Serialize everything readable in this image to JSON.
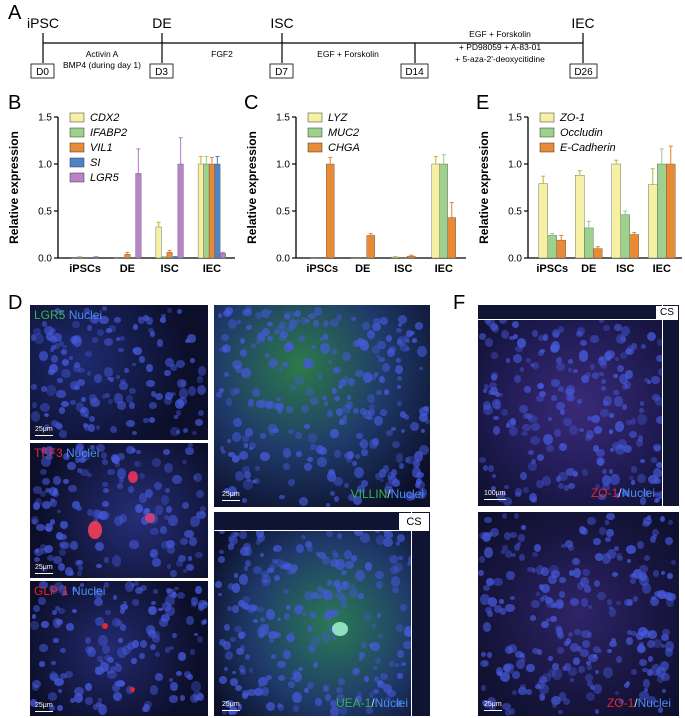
{
  "panel_letters": {
    "a": "A",
    "b": "B",
    "c": "C",
    "d": "D",
    "e": "E",
    "f": "F"
  },
  "timeline": {
    "stages": [
      "iPSC",
      "DE",
      "ISC",
      "IEC"
    ],
    "days": [
      "D0",
      "D3",
      "D7",
      "D14",
      "D26"
    ],
    "conditions": [
      "Activin A",
      "BMP4 (during day 1)",
      "FGF2",
      "EGF + Forskolin",
      "EGF + Forskolin",
      "+ PD98059 + A-83-01",
      "+ 5-aza-2'-deoxycitidine"
    ]
  },
  "chart_data": [
    {
      "type": "bar",
      "ylabel": "Relative expression",
      "ylim": [
        0,
        1.5
      ],
      "yticks": [
        "0.0",
        "0.5",
        "1.0",
        "1.5"
      ],
      "categories": [
        "iPSCs",
        "DE",
        "ISC",
        "IEC"
      ],
      "series": [
        {
          "name": "CDX2",
          "color": "#f6f0a4",
          "values": [
            0.0,
            0.0,
            0.33,
            1.0
          ],
          "errors": [
            0,
            0,
            0.05,
            0.08
          ]
        },
        {
          "name": "IFABP2",
          "color": "#9ed18e",
          "values": [
            0.01,
            0.0,
            0.01,
            1.0
          ],
          "errors": [
            0.005,
            0,
            0.005,
            0.08
          ]
        },
        {
          "name": "VIL1",
          "color": "#e98a36",
          "values": [
            0.0,
            0.04,
            0.06,
            1.0
          ],
          "errors": [
            0,
            0.02,
            0.02,
            0.07
          ]
        },
        {
          "name": "SI",
          "color": "#4f84c7",
          "values": [
            0.0,
            0.0,
            0.01,
            1.0
          ],
          "errors": [
            0,
            0,
            0.005,
            0.08
          ]
        },
        {
          "name": "LGR5",
          "color": "#b883c8",
          "values": [
            0.01,
            0.9,
            1.0,
            0.05
          ],
          "errors": [
            0.005,
            0.26,
            0.28,
            0.01
          ]
        }
      ]
    },
    {
      "type": "bar",
      "ylabel": "Relative expression",
      "ylim": [
        0,
        1.5
      ],
      "yticks": [
        "0.0",
        "0.5",
        "1.0",
        "1.5"
      ],
      "categories": [
        "iPSCs",
        "DE",
        "ISC",
        "IEC"
      ],
      "series": [
        {
          "name": "LYZ",
          "color": "#f6f0a4",
          "values": [
            0.0,
            0.0,
            0.01,
            1.0
          ],
          "errors": [
            0,
            0,
            0.005,
            0.08
          ]
        },
        {
          "name": "MUC2",
          "color": "#9ed18e",
          "values": [
            0.0,
            0.0,
            0.0,
            1.0
          ],
          "errors": [
            0,
            0,
            0,
            0.1
          ]
        },
        {
          "name": "CHGA",
          "color": "#e98a36",
          "values": [
            1.0,
            0.24,
            0.02,
            0.43
          ],
          "errors": [
            0.07,
            0.02,
            0.01,
            0.16
          ]
        }
      ]
    },
    {
      "type": "bar",
      "ylabel": "Relative expression",
      "ylim": [
        0,
        1.5
      ],
      "yticks": [
        "0.0",
        "0.5",
        "1.0",
        "1.5"
      ],
      "categories": [
        "iPSCs",
        "DE",
        "ISC",
        "IEC"
      ],
      "series": [
        {
          "name": "ZO-1",
          "color": "#f6f0a4",
          "values": [
            0.79,
            0.88,
            1.0,
            0.78
          ],
          "errors": [
            0.08,
            0.05,
            0.04,
            0.17
          ]
        },
        {
          "name": "Occludin",
          "color": "#9ed18e",
          "values": [
            0.24,
            0.32,
            0.46,
            1.0
          ],
          "errors": [
            0.02,
            0.07,
            0.04,
            0.16
          ]
        },
        {
          "name": "E-Cadherin",
          "color": "#e98a36",
          "values": [
            0.19,
            0.1,
            0.25,
            1.0
          ],
          "errors": [
            0.05,
            0.02,
            0.02,
            0.19
          ]
        }
      ]
    }
  ],
  "micrographs": {
    "lgr5": {
      "marker": "LGR5",
      "nuclei": "Nuclei",
      "scale": "25μm"
    },
    "tff3": {
      "marker": "TFF3",
      "nuclei": "Nuclei",
      "scale": "25μm"
    },
    "glp1": {
      "marker": "GLP-1",
      "nuclei": "Nuclei",
      "scale": "25μm"
    },
    "villin": {
      "marker": "VILLIN",
      "nuclei": "Nuclei",
      "scale": "25μm"
    },
    "uea1": {
      "marker": "UEA-1",
      "nuclei": "Nuclei",
      "scale": "25μm",
      "cs": "CS"
    },
    "zo1_top": {
      "marker": "ZO-1",
      "nuclei": "Nuclei",
      "scale": "100μm",
      "cs": "CS"
    },
    "zo1_bottom": {
      "marker": "ZO-1",
      "nuclei": "Nuclei",
      "scale": "25μm"
    }
  },
  "colors": {
    "nuclei": "#4b6ae0",
    "green": "#39b54a",
    "red": "#e8262e",
    "micro_bg": "#0c0f2a"
  }
}
